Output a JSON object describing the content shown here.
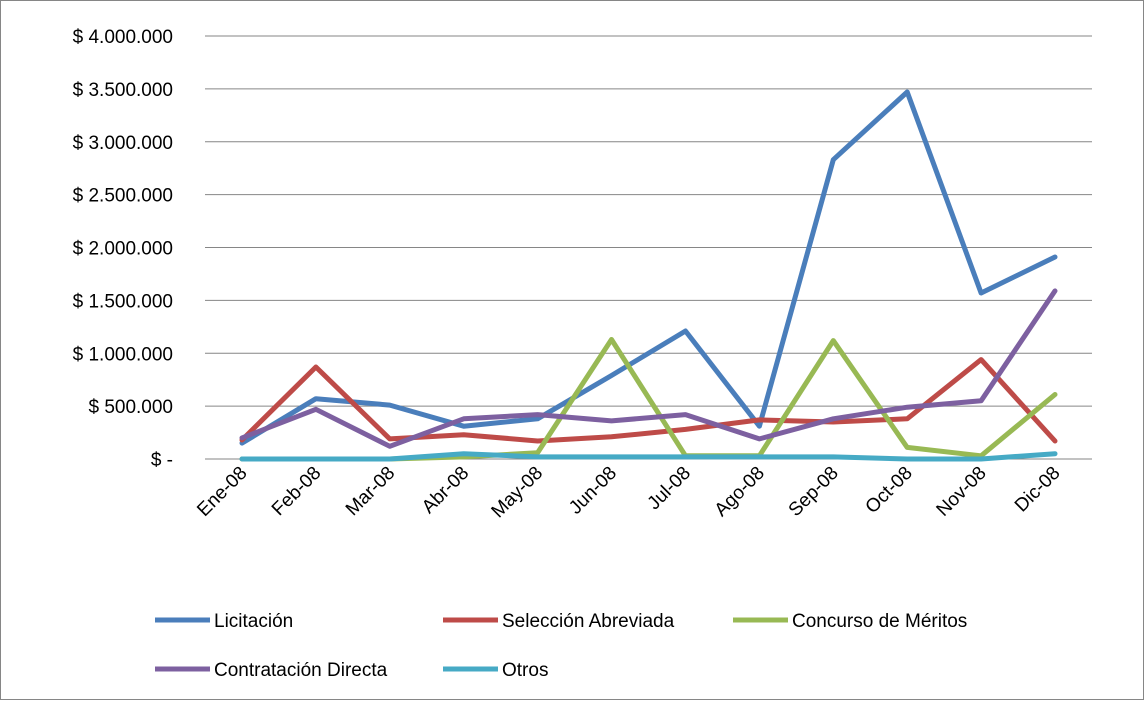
{
  "chart_data": {
    "type": "line",
    "categories": [
      "Ene-08",
      "Feb-08",
      "Mar-08",
      "Abr-08",
      "May-08",
      "Jun-08",
      "Jul-08",
      "Ago-08",
      "Sep-08",
      "Oct-08",
      "Nov-08",
      "Dic-08"
    ],
    "ylim": [
      0,
      4000000
    ],
    "yticks": [
      0,
      500000,
      1000000,
      1500000,
      2000000,
      2500000,
      3000000,
      3500000,
      4000000
    ],
    "ytick_labels": [
      "$ -",
      "$ 500.000",
      "$ 1.000.000",
      "$ 1.500.000",
      "$ 2.000.000",
      "$ 2.500.000",
      "$ 3.000.000",
      "$ 3.500.000",
      "$ 4.000.000"
    ],
    "grid": true,
    "legend_position": "bottom",
    "series": [
      {
        "name": "Licitación",
        "color": "#4a7ebb",
        "values": [
          150000,
          570000,
          510000,
          310000,
          380000,
          790000,
          1210000,
          310000,
          2830000,
          3470000,
          1570000,
          1910000
        ]
      },
      {
        "name": "Selección Abreviada",
        "color": "#be4b48",
        "values": [
          180000,
          870000,
          190000,
          230000,
          170000,
          210000,
          280000,
          370000,
          350000,
          380000,
          940000,
          170000
        ]
      },
      {
        "name": "Concurso de Méritos",
        "color": "#98b954",
        "values": [
          0,
          0,
          0,
          20000,
          60000,
          1130000,
          30000,
          30000,
          1120000,
          110000,
          30000,
          610000
        ]
      },
      {
        "name": "Contratación Directa",
        "color": "#7d60a0",
        "values": [
          200000,
          470000,
          120000,
          380000,
          420000,
          360000,
          420000,
          190000,
          380000,
          490000,
          550000,
          1590000
        ]
      },
      {
        "name": "Otros",
        "color": "#46aac5",
        "values": [
          0,
          0,
          0,
          50000,
          20000,
          20000,
          20000,
          20000,
          20000,
          0,
          0,
          50000
        ]
      }
    ]
  }
}
